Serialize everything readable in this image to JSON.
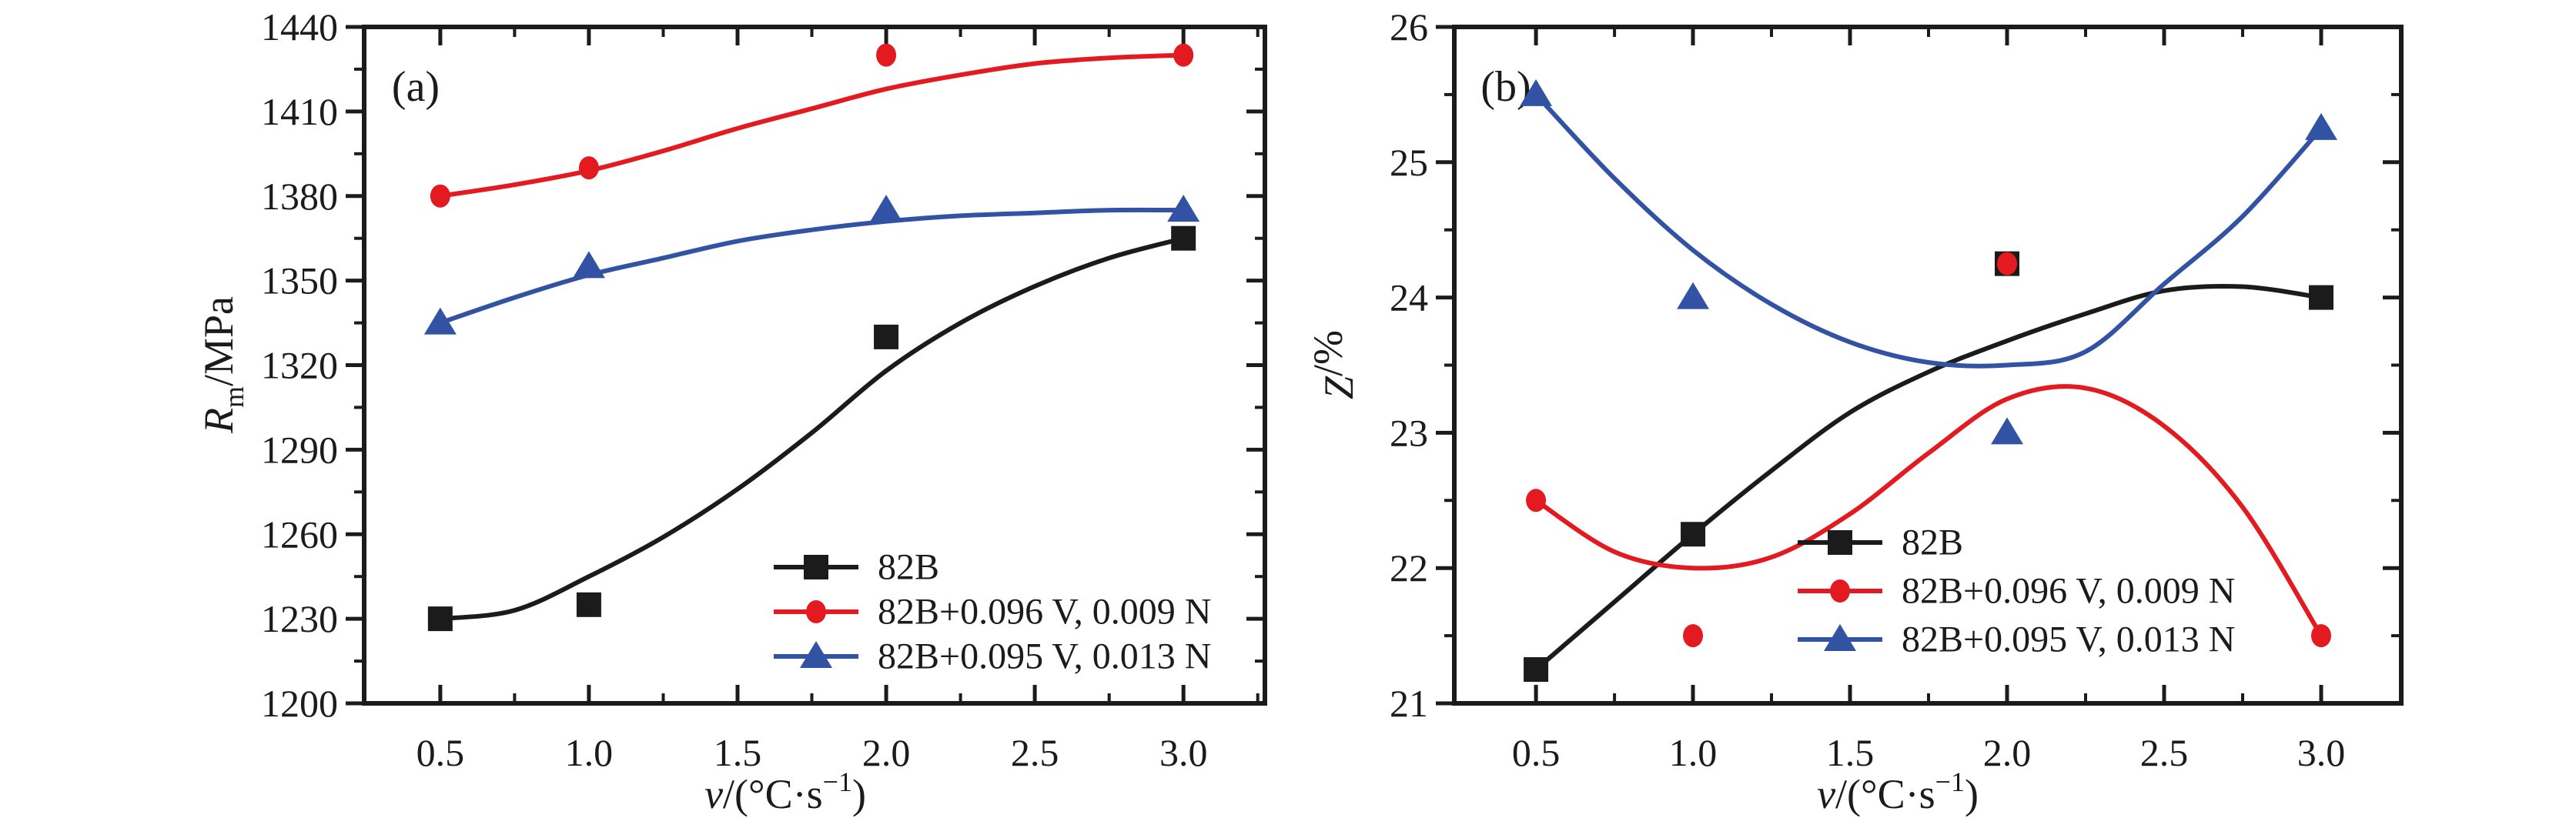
{
  "colors": {
    "black_series": "#1b1b1b",
    "red_series": "#e31a20",
    "blue_series": "#3253a3",
    "axis": "#1b1b1b",
    "background": "#ffffff"
  },
  "chart_data": [
    {
      "type": "scatter",
      "panel_label": "(a)",
      "xlabel_text": "v/(°C·s−1)",
      "ylabel_text": "Rm/MPa",
      "xlabel_parts": {
        "variable": "v",
        "open": "/(",
        "unit": "°C·s",
        "exponent": "−1",
        "close": ")"
      },
      "ylabel_parts": {
        "symbol": "R",
        "subscript": "m",
        "rest": "/MPa"
      },
      "xlim": [
        0.244,
        3.274
      ],
      "ylim": [
        1200,
        1440
      ],
      "x_major_ticks": [
        0.5,
        1.0,
        1.5,
        2.0,
        2.5,
        3.0
      ],
      "x_tick_labels": [
        "0.5",
        "1.0",
        "1.5",
        "2.0",
        "2.5",
        "3.0"
      ],
      "x_minor_interval": 0.25,
      "y_major_ticks": [
        1200,
        1230,
        1260,
        1290,
        1320,
        1350,
        1380,
        1410,
        1440
      ],
      "y_tick_labels": [
        "1200",
        "1230",
        "1260",
        "1290",
        "1320",
        "1350",
        "1380",
        "1410",
        "1440"
      ],
      "y_minor_interval": 15,
      "grid": false,
      "legend_position": "inside lower right",
      "series": [
        {
          "name": "82B",
          "marker": "square",
          "color_key": "black_series",
          "points": [
            [
              0.5,
              1230
            ],
            [
              1.0,
              1235
            ],
            [
              2.0,
              1330
            ],
            [
              3.0,
              1365
            ]
          ],
          "fit_curve": [
            [
              0.5,
              1230
            ],
            [
              0.75,
              1233
            ],
            [
              1.0,
              1245
            ],
            [
              1.25,
              1259
            ],
            [
              1.5,
              1276
            ],
            [
              1.75,
              1296
            ],
            [
              2.0,
              1318
            ],
            [
              2.25,
              1335
            ],
            [
              2.5,
              1348
            ],
            [
              2.75,
              1358
            ],
            [
              3.0,
              1365
            ]
          ]
        },
        {
          "name": "82B+0.096 V, 0.009 N",
          "marker": "circle",
          "color_key": "red_series",
          "points": [
            [
              0.5,
              1380
            ],
            [
              1.0,
              1390
            ],
            [
              2.0,
              1430
            ],
            [
              3.0,
              1430
            ]
          ],
          "fit_curve": [
            [
              0.5,
              1380
            ],
            [
              0.75,
              1384
            ],
            [
              1.0,
              1389
            ],
            [
              1.25,
              1396
            ],
            [
              1.5,
              1404
            ],
            [
              1.75,
              1411
            ],
            [
              2.0,
              1418
            ],
            [
              2.25,
              1423
            ],
            [
              2.5,
              1427
            ],
            [
              2.75,
              1429
            ],
            [
              3.0,
              1430
            ]
          ]
        },
        {
          "name": "82B+0.095 V, 0.013 N",
          "marker": "triangle",
          "color_key": "blue_series",
          "points": [
            [
              0.5,
              1335
            ],
            [
              1.0,
              1355
            ],
            [
              2.0,
              1375
            ],
            [
              3.0,
              1375
            ]
          ],
          "fit_curve": [
            [
              0.5,
              1335
            ],
            [
              0.75,
              1344
            ],
            [
              1.0,
              1352
            ],
            [
              1.25,
              1358
            ],
            [
              1.5,
              1364
            ],
            [
              1.75,
              1368
            ],
            [
              2.0,
              1371
            ],
            [
              2.25,
              1373
            ],
            [
              2.5,
              1374
            ],
            [
              2.75,
              1375
            ],
            [
              3.0,
              1375
            ]
          ]
        }
      ]
    },
    {
      "type": "scatter",
      "panel_label": "(b)",
      "xlabel_text": "v/(°C·s−1)",
      "ylabel_text": "Z/%",
      "xlabel_parts": {
        "variable": "v",
        "open": "/(",
        "unit": "°C·s",
        "exponent": "−1",
        "close": ")"
      },
      "ylabel_parts": {
        "symbol": "Z",
        "subscript": "",
        "rest": "/%"
      },
      "xlim": [
        0.24,
        3.255
      ],
      "ylim": [
        21,
        26
      ],
      "x_major_ticks": [
        0.5,
        1.0,
        1.5,
        2.0,
        2.5,
        3.0
      ],
      "x_tick_labels": [
        "0.5",
        "1.0",
        "1.5",
        "2.0",
        "2.5",
        "3.0"
      ],
      "x_minor_interval": 0.25,
      "y_major_ticks": [
        21,
        22,
        23,
        24,
        25,
        26
      ],
      "y_tick_labels": [
        "21",
        "22",
        "23",
        "24",
        "25",
        "26"
      ],
      "y_minor_interval": 0.5,
      "grid": false,
      "legend_position": "inside middle right",
      "series": [
        {
          "name": "82B",
          "marker": "square",
          "color_key": "black_series",
          "points": [
            [
              0.5,
              21.25
            ],
            [
              1.0,
              22.25
            ],
            [
              2.0,
              24.25
            ],
            [
              3.0,
              24.0
            ]
          ],
          "fit_curve": [
            [
              0.5,
              21.25
            ],
            [
              0.75,
              21.75
            ],
            [
              1.0,
              22.25
            ],
            [
              1.25,
              22.72
            ],
            [
              1.5,
              23.15
            ],
            [
              1.75,
              23.45
            ],
            [
              2.0,
              23.68
            ],
            [
              2.25,
              23.88
            ],
            [
              2.5,
              24.05
            ],
            [
              2.75,
              24.08
            ],
            [
              3.0,
              24.0
            ]
          ]
        },
        {
          "name": "82B+0.096 V, 0.009 N",
          "marker": "circle",
          "color_key": "red_series",
          "points": [
            [
              0.5,
              22.5
            ],
            [
              1.0,
              21.5
            ],
            [
              2.0,
              24.25
            ],
            [
              3.0,
              21.5
            ]
          ],
          "fit_curve": [
            [
              0.5,
              22.5
            ],
            [
              0.75,
              22.12
            ],
            [
              1.0,
              22.0
            ],
            [
              1.25,
              22.08
            ],
            [
              1.5,
              22.4
            ],
            [
              1.75,
              22.85
            ],
            [
              2.0,
              23.25
            ],
            [
              2.25,
              23.33
            ],
            [
              2.5,
              23.05
            ],
            [
              2.75,
              22.45
            ],
            [
              3.0,
              21.5
            ]
          ]
        },
        {
          "name": "82B+0.095 V, 0.013 N",
          "marker": "triangle",
          "color_key": "blue_series",
          "points": [
            [
              0.5,
              25.5
            ],
            [
              1.0,
              24.0
            ],
            [
              2.0,
              23.0
            ],
            [
              3.0,
              25.25
            ]
          ],
          "fit_curve": [
            [
              0.5,
              25.5
            ],
            [
              0.75,
              24.88
            ],
            [
              1.0,
              24.35
            ],
            [
              1.25,
              23.95
            ],
            [
              1.5,
              23.67
            ],
            [
              1.75,
              23.52
            ],
            [
              2.0,
              23.5
            ],
            [
              2.25,
              23.6
            ],
            [
              2.5,
              24.1
            ],
            [
              2.75,
              24.6
            ],
            [
              3.0,
              25.25
            ]
          ]
        }
      ]
    }
  ]
}
